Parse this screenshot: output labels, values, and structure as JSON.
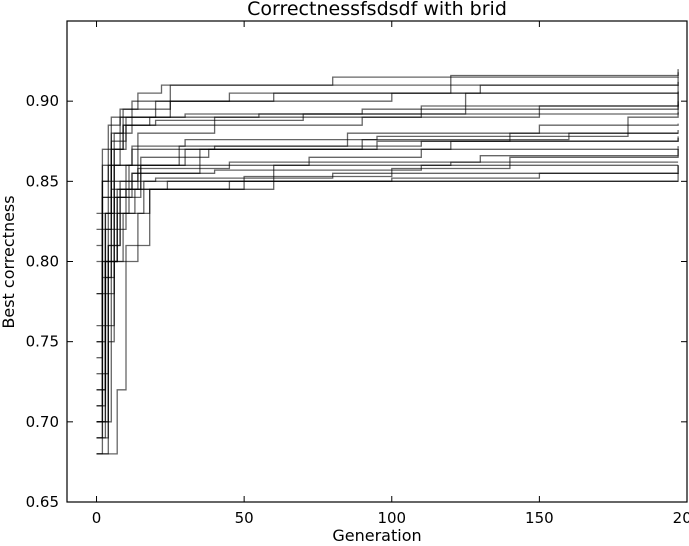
{
  "chart_data": {
    "type": "line",
    "title": "Correctnessfsdsdf with brid",
    "xlabel": "Generation",
    "ylabel": "Best correctness",
    "xlim": [
      -10,
      200
    ],
    "ylim": [
      0.65,
      0.95
    ],
    "xticks": [
      0,
      50,
      100,
      150,
      200
    ],
    "xtick_labels": [
      "0",
      "50",
      "100",
      "150",
      "200"
    ],
    "yticks": [
      0.65,
      0.7,
      0.75,
      0.8,
      0.85,
      0.9
    ],
    "ytick_labels": [
      "0.65",
      "0.70",
      "0.75",
      "0.80",
      "0.85",
      "0.90"
    ],
    "grid": false,
    "line_color": "#000000",
    "series": [
      {
        "points": [
          [
            0,
            0.7
          ],
          [
            2,
            0.8
          ],
          [
            4,
            0.86
          ],
          [
            8,
            0.89
          ],
          [
            20,
            0.9
          ],
          [
            60,
            0.905
          ],
          [
            120,
            0.91
          ],
          [
            197,
            0.912
          ]
        ]
      },
      {
        "points": [
          [
            0,
            0.72
          ],
          [
            3,
            0.83
          ],
          [
            6,
            0.87
          ],
          [
            10,
            0.89
          ],
          [
            25,
            0.91
          ],
          [
            80,
            0.915
          ],
          [
            197,
            0.918
          ]
        ]
      },
      {
        "points": [
          [
            0,
            0.75
          ],
          [
            2,
            0.82
          ],
          [
            5,
            0.88
          ],
          [
            9,
            0.895
          ],
          [
            14,
            0.905
          ],
          [
            22,
            0.91
          ],
          [
            120,
            0.916
          ],
          [
            197,
            0.92
          ]
        ]
      },
      {
        "points": [
          [
            0,
            0.68
          ],
          [
            4,
            0.81
          ],
          [
            8,
            0.85
          ],
          [
            14,
            0.88
          ],
          [
            40,
            0.885
          ],
          [
            90,
            0.89
          ],
          [
            150,
            0.897
          ],
          [
            197,
            0.898
          ]
        ]
      },
      {
        "points": [
          [
            0,
            0.69
          ],
          [
            3,
            0.79
          ],
          [
            6,
            0.84
          ],
          [
            10,
            0.86
          ],
          [
            30,
            0.87
          ],
          [
            95,
            0.875
          ],
          [
            140,
            0.88
          ],
          [
            197,
            0.882
          ]
        ]
      },
      {
        "points": [
          [
            0,
            0.71
          ],
          [
            2,
            0.8
          ],
          [
            5,
            0.84
          ],
          [
            12,
            0.855
          ],
          [
            35,
            0.86
          ],
          [
            72,
            0.865
          ],
          [
            110,
            0.87
          ],
          [
            197,
            0.872
          ]
        ]
      },
      {
        "points": [
          [
            0,
            0.7
          ],
          [
            4,
            0.8
          ],
          [
            7,
            0.83
          ],
          [
            13,
            0.845
          ],
          [
            45,
            0.85
          ],
          [
            100,
            0.852
          ],
          [
            150,
            0.855
          ],
          [
            197,
            0.86
          ]
        ]
      },
      {
        "points": [
          [
            0,
            0.8
          ],
          [
            2,
            0.84
          ],
          [
            5,
            0.85
          ],
          [
            20,
            0.852
          ],
          [
            80,
            0.855
          ],
          [
            197,
            0.86
          ]
        ]
      },
      {
        "points": [
          [
            0,
            0.68
          ],
          [
            5,
            0.68
          ],
          [
            7,
            0.72
          ],
          [
            10,
            0.8
          ],
          [
            14,
            0.83
          ],
          [
            18,
            0.845
          ],
          [
            50,
            0.85
          ],
          [
            197,
            0.85
          ]
        ]
      },
      {
        "points": [
          [
            0,
            0.78
          ],
          [
            3,
            0.82
          ],
          [
            6,
            0.86
          ],
          [
            12,
            0.87
          ],
          [
            40,
            0.872
          ],
          [
            110,
            0.875
          ],
          [
            197,
            0.877
          ]
        ]
      },
      {
        "points": [
          [
            0,
            0.74
          ],
          [
            2,
            0.83
          ],
          [
            5,
            0.87
          ],
          [
            9,
            0.885
          ],
          [
            18,
            0.89
          ],
          [
            55,
            0.892
          ],
          [
            125,
            0.905
          ],
          [
            197,
            0.906
          ]
        ]
      },
      {
        "points": [
          [
            0,
            0.82
          ],
          [
            2,
            0.86
          ],
          [
            6,
            0.88
          ],
          [
            12,
            0.89
          ],
          [
            30,
            0.892
          ],
          [
            90,
            0.895
          ],
          [
            197,
            0.91
          ]
        ]
      },
      {
        "points": [
          [
            0,
            0.69
          ],
          [
            4,
            0.75
          ],
          [
            6,
            0.82
          ],
          [
            10,
            0.845
          ],
          [
            24,
            0.85
          ],
          [
            60,
            0.86
          ],
          [
            120,
            0.862
          ],
          [
            197,
            0.862
          ]
        ]
      },
      {
        "points": [
          [
            0,
            0.72
          ],
          [
            3,
            0.8
          ],
          [
            7,
            0.84
          ],
          [
            15,
            0.86
          ],
          [
            35,
            0.87
          ],
          [
            90,
            0.876
          ],
          [
            160,
            0.88
          ],
          [
            197,
            0.88
          ]
        ]
      },
      {
        "points": [
          [
            0,
            0.7
          ],
          [
            5,
            0.8
          ],
          [
            9,
            0.83
          ],
          [
            16,
            0.85
          ],
          [
            50,
            0.853
          ],
          [
            100,
            0.858
          ],
          [
            140,
            0.865
          ],
          [
            197,
            0.87
          ]
        ]
      },
      {
        "points": [
          [
            0,
            0.76
          ],
          [
            2,
            0.84
          ],
          [
            5,
            0.875
          ],
          [
            10,
            0.885
          ],
          [
            20,
            0.888
          ],
          [
            70,
            0.892
          ],
          [
            197,
            0.893
          ]
        ]
      },
      {
        "points": [
          [
            0,
            0.71
          ],
          [
            3,
            0.78
          ],
          [
            6,
            0.83
          ],
          [
            11,
            0.86
          ],
          [
            28,
            0.872
          ],
          [
            85,
            0.88
          ],
          [
            150,
            0.885
          ],
          [
            197,
            0.886
          ]
        ]
      },
      {
        "points": [
          [
            0,
            0.83
          ],
          [
            2,
            0.87
          ],
          [
            5,
            0.89
          ],
          [
            12,
            0.9
          ],
          [
            45,
            0.905
          ],
          [
            130,
            0.91
          ],
          [
            197,
            0.915
          ]
        ]
      },
      {
        "points": [
          [
            0,
            0.68
          ],
          [
            2,
            0.79
          ],
          [
            5,
            0.845
          ],
          [
            12,
            0.855
          ],
          [
            40,
            0.857
          ],
          [
            110,
            0.86
          ],
          [
            197,
            0.86
          ]
        ]
      },
      {
        "points": [
          [
            0,
            0.73
          ],
          [
            4,
            0.81
          ],
          [
            8,
            0.845
          ],
          [
            15,
            0.865
          ],
          [
            38,
            0.87
          ],
          [
            120,
            0.875
          ],
          [
            197,
            0.878
          ]
        ]
      },
      {
        "points": [
          [
            0,
            0.78
          ],
          [
            2,
            0.85
          ],
          [
            4,
            0.885
          ],
          [
            8,
            0.895
          ],
          [
            25,
            0.9
          ],
          [
            100,
            0.905
          ],
          [
            197,
            0.9
          ]
        ]
      },
      {
        "points": [
          [
            0,
            0.7
          ],
          [
            3,
            0.8
          ],
          [
            7,
            0.845
          ],
          [
            14,
            0.858
          ],
          [
            45,
            0.862
          ],
          [
            130,
            0.866
          ],
          [
            197,
            0.87
          ]
        ]
      },
      {
        "points": [
          [
            0,
            0.75
          ],
          [
            3,
            0.83
          ],
          [
            6,
            0.86
          ],
          [
            12,
            0.872
          ],
          [
            30,
            0.876
          ],
          [
            95,
            0.878
          ],
          [
            180,
            0.89
          ],
          [
            197,
            0.9
          ]
        ]
      },
      {
        "points": [
          [
            0,
            0.81
          ],
          [
            2,
            0.85
          ],
          [
            5,
            0.87
          ],
          [
            9,
            0.885
          ],
          [
            40,
            0.89
          ],
          [
            110,
            0.897
          ],
          [
            197,
            0.9
          ]
        ]
      },
      {
        "points": [
          [
            0,
            0.69
          ],
          [
            2,
            0.76
          ],
          [
            6,
            0.8
          ],
          [
            10,
            0.81
          ],
          [
            18,
            0.845
          ],
          [
            60,
            0.85
          ],
          [
            197,
            0.855
          ]
        ]
      }
    ]
  }
}
